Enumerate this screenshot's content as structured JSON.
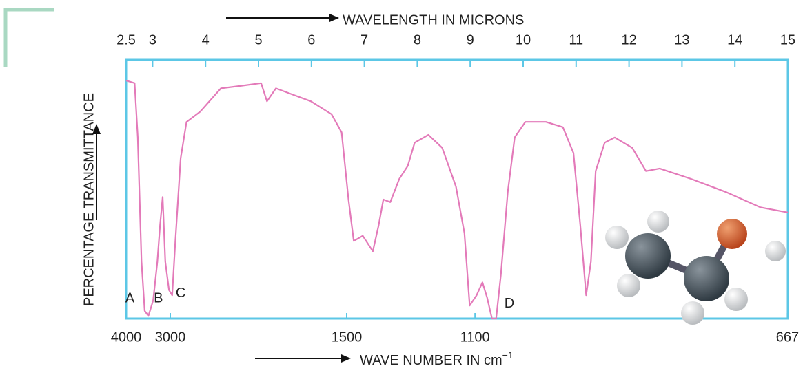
{
  "chart_data": {
    "type": "line",
    "title": "WAVELENGTH IN MICRONS",
    "x2_label": "WAVE NUMBER IN cm",
    "x2_label_exponent": "−1",
    "y_label": "PERCENTAGE TRANSMITTANCE",
    "color": "#e37ab9",
    "frame_color": "#5cc7e6",
    "xlim": [
      2.5,
      15
    ],
    "xticks": [
      2.5,
      3,
      4,
      5,
      6,
      7,
      8,
      9,
      10,
      11,
      12,
      13,
      14,
      15
    ],
    "x2ticks": [
      4000,
      3000,
      1500,
      1100,
      667
    ],
    "ylim": [
      0,
      100
    ],
    "x": [
      2.5,
      2.66,
      2.72,
      2.79,
      2.85,
      2.92,
      3.01,
      3.09,
      3.14,
      3.19,
      3.24,
      3.31,
      3.37,
      3.43,
      3.53,
      3.64,
      3.9,
      4.03,
      4.29,
      4.68,
      5.05,
      5.16,
      5.33,
      5.59,
      5.99,
      6.38,
      6.57,
      6.7,
      6.8,
      6.97,
      7.16,
      7.27,
      7.36,
      7.49,
      7.66,
      7.82,
      7.95,
      8.21,
      8.47,
      8.73,
      8.89,
      8.99,
      9.12,
      9.23,
      9.32,
      9.41,
      9.49,
      9.58,
      9.71,
      9.84,
      10.04,
      10.43,
      10.75,
      10.95,
      11.08,
      11.19,
      11.28,
      11.37,
      11.54,
      11.73,
      12.06,
      12.32,
      12.58,
      13.17,
      13.82,
      14.48,
      15.0
    ],
    "values": [
      92,
      91,
      70,
      22,
      3,
      1,
      7,
      22,
      36,
      47,
      22,
      11,
      9,
      30,
      62,
      76,
      80,
      83,
      89,
      90,
      91,
      84,
      89,
      87,
      84,
      79,
      72,
      46,
      30,
      32,
      26,
      36,
      46,
      45,
      54,
      59,
      68,
      71,
      66,
      51,
      33,
      5,
      9,
      14,
      8,
      0,
      0,
      17,
      49,
      70,
      76,
      76,
      74,
      64,
      36,
      9,
      22,
      57,
      68,
      70,
      66,
      57,
      58,
      54,
      49,
      43,
      41
    ],
    "annotations": [
      {
        "text": "A",
        "x": 2.57,
        "y": 5
      },
      {
        "text": "B",
        "x": 3.11,
        "y": 5
      },
      {
        "text": "C",
        "x": 3.53,
        "y": 7
      },
      {
        "text": "D",
        "x": 9.74,
        "y": 3
      }
    ]
  }
}
